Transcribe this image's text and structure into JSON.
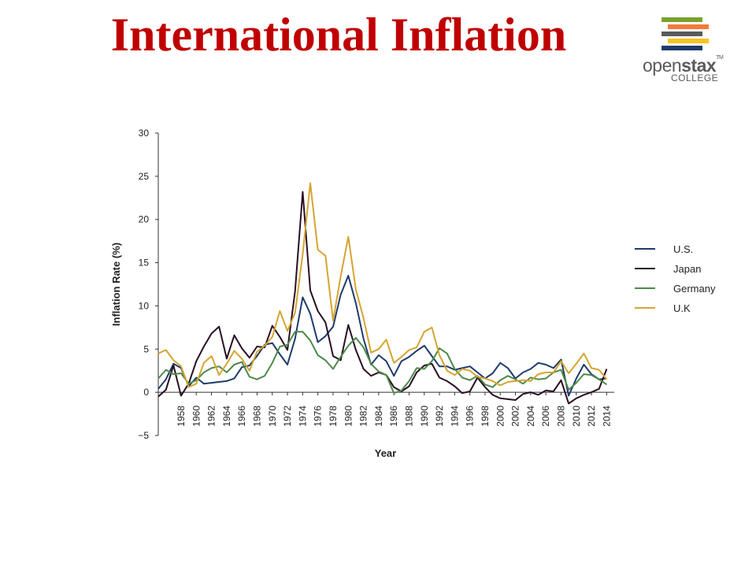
{
  "slide": {
    "title": "International Inflation"
  },
  "logo": {
    "word_a": "open",
    "word_b": "stax",
    "tm": "TM",
    "sub": "COLLEGE",
    "bar_colors": [
      "#78a22f",
      "#f4793b",
      "#5a5a5a",
      "#f7c41f",
      "#1f3b6d"
    ]
  },
  "chart_data": {
    "type": "line",
    "xlabel": "Year",
    "ylabel": "Inflation Rate (%)",
    "xlim": [
      1955,
      2015
    ],
    "ylim": [
      -5,
      30
    ],
    "yticks": [
      -5,
      0,
      5,
      10,
      15,
      20,
      25,
      30
    ],
    "xticks": [
      1958,
      1960,
      1962,
      1964,
      1966,
      1968,
      1970,
      1972,
      1974,
      1976,
      1978,
      1980,
      1982,
      1984,
      1986,
      1988,
      1990,
      1992,
      1994,
      1996,
      1998,
      2000,
      2002,
      2004,
      2006,
      2008,
      2010,
      2012,
      2014
    ],
    "grid": false,
    "legend_position": "right",
    "x": [
      1955,
      1956,
      1957,
      1958,
      1959,
      1960,
      1961,
      1962,
      1963,
      1964,
      1965,
      1966,
      1967,
      1968,
      1969,
      1970,
      1971,
      1972,
      1973,
      1974,
      1975,
      1976,
      1977,
      1978,
      1979,
      1980,
      1981,
      1982,
      1983,
      1984,
      1985,
      1986,
      1987,
      1988,
      1989,
      1990,
      1991,
      1992,
      1993,
      1994,
      1995,
      1996,
      1997,
      1998,
      1999,
      2000,
      2001,
      2002,
      2003,
      2004,
      2005,
      2006,
      2007,
      2008,
      2009,
      2010,
      2011,
      2012,
      2013,
      2014
    ],
    "series": [
      {
        "name": "U.S.",
        "color": "#1f3b6d",
        "values": [
          0.4,
          1.5,
          3.3,
          2.8,
          0.7,
          1.7,
          1.0,
          1.1,
          1.2,
          1.3,
          1.6,
          2.9,
          3.1,
          4.2,
          5.5,
          5.7,
          4.4,
          3.2,
          6.2,
          11.0,
          9.1,
          5.8,
          6.5,
          7.6,
          11.3,
          13.5,
          10.3,
          6.2,
          3.2,
          4.3,
          3.6,
          1.9,
          3.6,
          4.1,
          4.8,
          5.4,
          4.2,
          3.0,
          3.0,
          2.6,
          2.8,
          3.0,
          2.3,
          1.6,
          2.2,
          3.4,
          2.8,
          1.6,
          2.3,
          2.7,
          3.4,
          3.2,
          2.8,
          3.8,
          -0.4,
          1.6,
          3.2,
          2.1,
          1.5,
          1.6
        ]
      },
      {
        "name": "Japan",
        "color": "#2a0f24",
        "values": [
          -0.5,
          0.3,
          3.1,
          -0.4,
          1.0,
          3.6,
          5.3,
          6.8,
          7.6,
          3.9,
          6.6,
          5.1,
          4.0,
          5.3,
          5.2,
          7.7,
          6.4,
          4.9,
          11.7,
          23.2,
          11.8,
          9.4,
          8.1,
          4.2,
          3.7,
          7.8,
          4.9,
          2.7,
          1.9,
          2.3,
          2.0,
          0.6,
          0.1,
          0.7,
          2.3,
          3.1,
          3.3,
          1.7,
          1.3,
          0.7,
          -0.1,
          0.1,
          1.7,
          0.6,
          -0.3,
          -0.7,
          -0.8,
          -0.9,
          -0.2,
          0.0,
          -0.3,
          0.2,
          0.1,
          1.4,
          -1.3,
          -0.7,
          -0.3,
          0.0,
          0.4,
          2.7
        ]
      },
      {
        "name": "Germany",
        "color": "#4d8a4a",
        "values": [
          1.6,
          2.6,
          2.1,
          2.2,
          1.0,
          1.4,
          2.3,
          2.8,
          3.0,
          2.3,
          3.2,
          3.5,
          1.8,
          1.5,
          1.9,
          3.4,
          5.3,
          5.5,
          7.0,
          7.0,
          6.0,
          4.3,
          3.7,
          2.7,
          4.1,
          5.4,
          6.3,
          5.2,
          3.3,
          2.4,
          2.0,
          -0.1,
          0.2,
          1.3,
          2.8,
          2.7,
          3.6,
          5.1,
          4.5,
          2.7,
          1.7,
          1.4,
          1.9,
          0.9,
          0.6,
          1.4,
          1.9,
          1.5,
          1.0,
          1.7,
          1.5,
          1.6,
          2.3,
          2.6,
          0.3,
          1.1,
          2.1,
          2.0,
          1.5,
          0.9
        ]
      },
      {
        "name": "U.K",
        "color": "#d4a531",
        "values": [
          4.5,
          4.9,
          3.7,
          3.0,
          0.6,
          1.0,
          3.4,
          4.2,
          2.0,
          3.3,
          4.8,
          3.9,
          2.5,
          4.7,
          5.4,
          6.4,
          9.4,
          7.1,
          9.2,
          16.0,
          24.2,
          16.5,
          15.8,
          8.3,
          13.4,
          18.0,
          11.9,
          8.6,
          4.6,
          5.0,
          6.1,
          3.4,
          4.1,
          4.9,
          5.2,
          7.0,
          7.5,
          4.3,
          2.5,
          2.0,
          2.7,
          2.5,
          1.8,
          1.6,
          1.3,
          0.8,
          1.2,
          1.3,
          1.4,
          1.3,
          2.1,
          2.3,
          2.3,
          3.6,
          2.2,
          3.3,
          4.5,
          2.8,
          2.6,
          1.5
        ]
      }
    ]
  }
}
